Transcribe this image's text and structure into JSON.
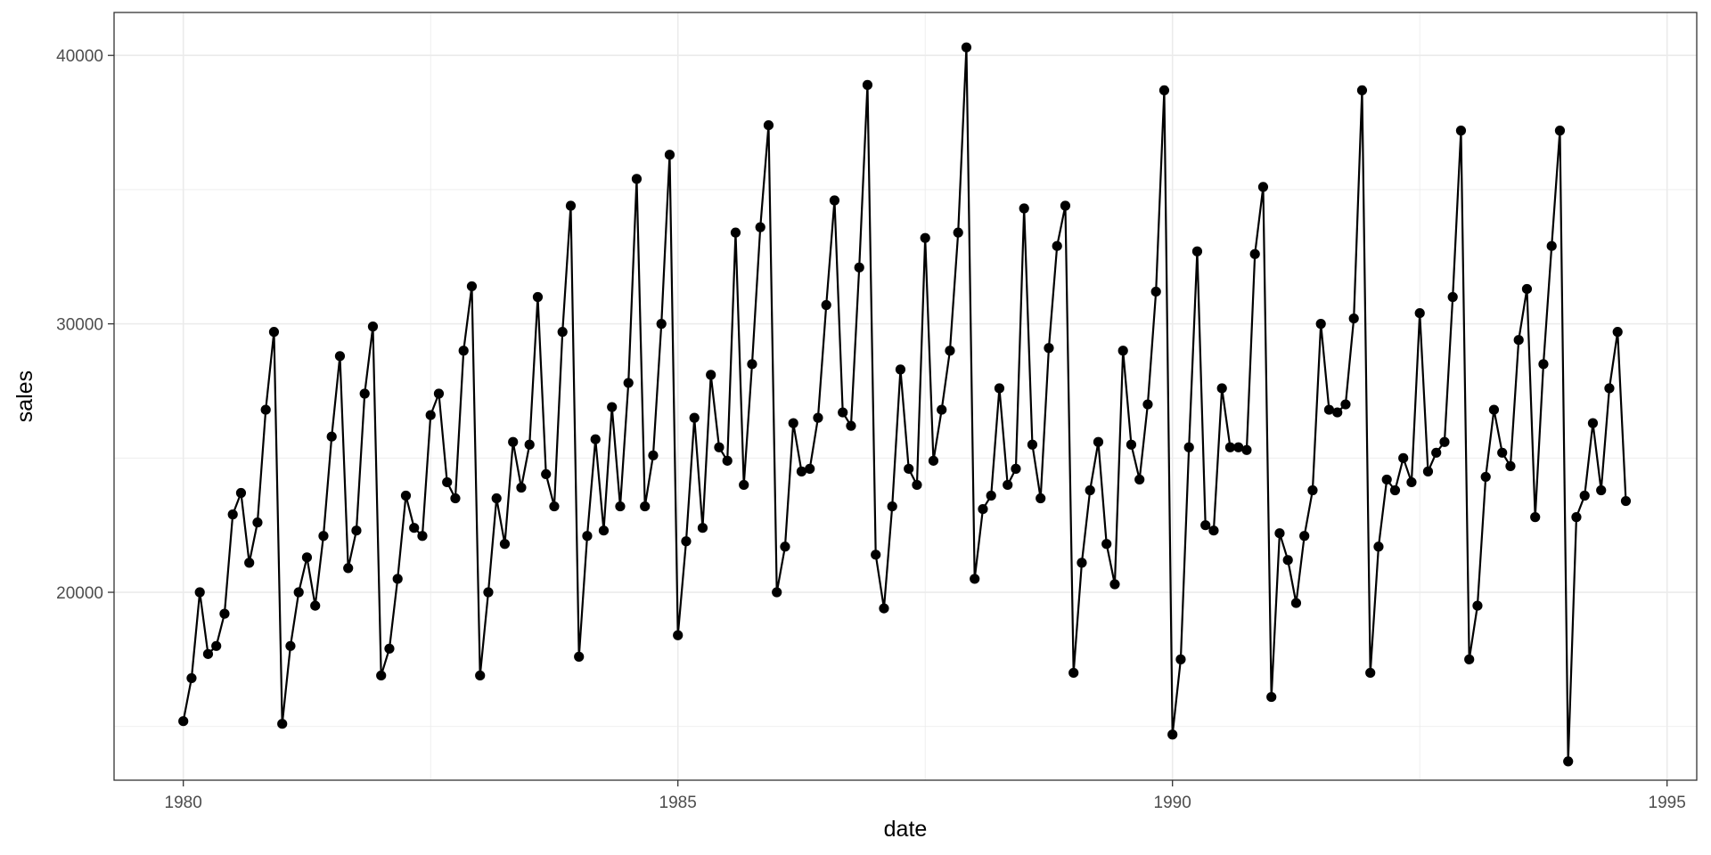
{
  "chart_data": {
    "type": "line",
    "markers": true,
    "xlabel": "date",
    "ylabel": "sales",
    "x_start": "1980-01",
    "x_end": "1994-08",
    "x_ticks": [
      1980,
      1985,
      1990,
      1995
    ],
    "y_ticks": [
      20000,
      30000,
      40000
    ],
    "xlim": [
      1979.3,
      1995.3
    ],
    "ylim": [
      13000,
      41600
    ],
    "grid": true,
    "legend": "none",
    "colors": {
      "line": "#000000",
      "grid": "#ebebeb",
      "border": "#333333",
      "background": "#ffffff"
    },
    "series": [
      {
        "values": [
          15200,
          16800,
          20000,
          17700,
          18000,
          19200,
          22900,
          23700,
          21100,
          22600,
          26800,
          29700,
          15100,
          18000,
          20000,
          21300,
          19500,
          22100,
          25800,
          28800,
          20900,
          22300,
          27400,
          29900,
          16900,
          17900,
          20500,
          23600,
          22400,
          22100,
          26600,
          27400,
          24100,
          23500,
          29000,
          31400,
          16900,
          20000,
          23500,
          21800,
          25600,
          23900,
          25500,
          31000,
          24400,
          23200,
          29700,
          34400,
          17600,
          22100,
          25700,
          22300,
          26900,
          23200,
          27800,
          35400,
          23200,
          25100,
          30000,
          36300,
          18400,
          21900,
          26500,
          22400,
          28100,
          25400,
          24900,
          33400,
          24000,
          28500,
          33600,
          37400,
          20000,
          21700,
          26300,
          24500,
          24600,
          26500,
          30700,
          34600,
          26700,
          26200,
          32100,
          38900,
          21400,
          19400,
          23200,
          28300,
          24600,
          24000,
          33200,
          24900,
          26800,
          29000,
          33400,
          40300,
          20500,
          23100,
          23600,
          27600,
          24000,
          24600,
          34300,
          25500,
          23500,
          29100,
          32900,
          34400,
          17000,
          21100,
          23800,
          25600,
          21800,
          20300,
          29000,
          25500,
          24200,
          27000,
          31200,
          38700,
          14700,
          17500,
          25400,
          32700,
          22500,
          22300,
          27600,
          25400,
          25400,
          25300,
          32600,
          35100,
          16100,
          22200,
          21200,
          19600,
          22100,
          23800,
          30000,
          26800,
          26700,
          27000,
          30200,
          38700,
          17000,
          21700,
          24200,
          23800,
          25000,
          24100,
          30400,
          24500,
          25200,
          25600,
          31000,
          37200,
          17500,
          19500,
          24300,
          26800,
          25200,
          24700,
          29400,
          31300,
          22800,
          28500,
          32900,
          37200,
          13700,
          22800,
          23600,
          26300,
          23800,
          27600,
          29700,
          23400
        ]
      }
    ]
  }
}
